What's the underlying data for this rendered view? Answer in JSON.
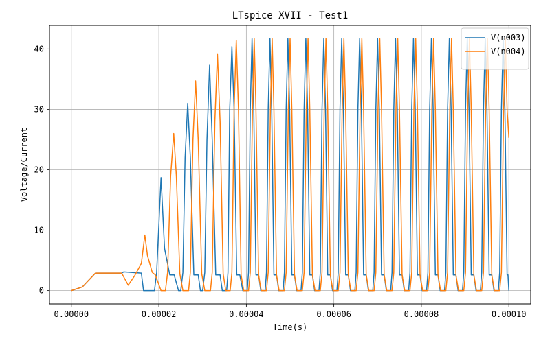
{
  "chart_data": {
    "type": "line",
    "title": "LTspice XVII - Test1",
    "xlabel": "Time(s)",
    "ylabel": "Voltage/Current",
    "xlim": [
      -5e-06,
      0.000105
    ],
    "ylim": [
      -2.2,
      43.9
    ],
    "xticks": [
      0,
      2e-05,
      4e-05,
      6e-05,
      8e-05,
      0.0001
    ],
    "xtick_labels": [
      "0.00000",
      "0.00002",
      "0.00004",
      "0.00006",
      "0.00008",
      "0.00010"
    ],
    "yticks": [
      0,
      10,
      20,
      30,
      40
    ],
    "ytick_labels": [
      "0",
      "10",
      "20",
      "30",
      "40"
    ],
    "grid": true,
    "legend_position": "top-right",
    "series": [
      {
        "name": "V(n003)",
        "color": "#1f77b4",
        "points": [
          [
            0,
            0
          ],
          [
            2.5e-06,
            0.6
          ],
          [
            5.5e-06,
            2.9
          ],
          [
            1.15e-05,
            2.9
          ],
          [
            1.2e-05,
            3.1
          ],
          [
            1.6e-05,
            2.9
          ],
          [
            1.65e-05,
            0
          ],
          [
            1.9e-05,
            0
          ],
          [
            1.95e-05,
            3.0
          ],
          [
            2.05e-05,
            18.7
          ],
          [
            2.13e-05,
            7.0
          ],
          [
            2.25e-05,
            2.6
          ],
          [
            2.35e-05,
            2.6
          ],
          [
            2.45e-05,
            0
          ],
          [
            2.5e-05,
            0
          ],
          [
            2.55e-05,
            3.0
          ],
          [
            2.6e-05,
            22.0
          ],
          [
            2.66e-05,
            31.0
          ],
          [
            2.72e-05,
            22.0
          ],
          [
            2.8e-05,
            2.6
          ],
          [
            2.9e-05,
            2.6
          ],
          [
            2.95e-05,
            0
          ],
          [
            3e-05,
            0
          ],
          [
            3.05e-05,
            3.0
          ],
          [
            3.1e-05,
            25.0
          ],
          [
            3.16e-05,
            37.3
          ],
          [
            3.22e-05,
            25.0
          ],
          [
            3.3e-05,
            2.6
          ],
          [
            3.4e-05,
            2.6
          ],
          [
            3.45e-05,
            0
          ],
          [
            3.55e-05,
            0
          ],
          [
            3.58e-05,
            3.0
          ],
          [
            3.62e-05,
            30.0
          ],
          [
            3.67e-05,
            40.4
          ],
          [
            3.72e-05,
            30.0
          ],
          [
            3.78e-05,
            2.6
          ],
          [
            3.85e-05,
            2.6
          ],
          [
            3.92e-05,
            0
          ],
          [
            4.02e-05,
            0
          ],
          [
            4.05e-05,
            3.0
          ],
          [
            4.09e-05,
            30.0
          ],
          [
            4.13e-05,
            41.7
          ],
          [
            4.17e-05,
            30.0
          ],
          [
            4.22e-05,
            2.6
          ],
          [
            4.28e-05,
            2.6
          ],
          [
            4.33e-05,
            0
          ],
          [
            4.43e-05,
            0
          ],
          [
            4.46e-05,
            3.0
          ],
          [
            4.5e-05,
            30.0
          ],
          [
            4.54e-05,
            41.7
          ],
          [
            4.58e-05,
            30.0
          ],
          [
            4.63e-05,
            2.6
          ],
          [
            4.69e-05,
            2.6
          ],
          [
            4.74e-05,
            0
          ],
          [
            4.84e-05,
            0
          ],
          [
            4.87e-05,
            3.0
          ],
          [
            4.91e-05,
            30.0
          ],
          [
            4.95e-05,
            41.7
          ],
          [
            4.99e-05,
            30.0
          ],
          [
            5.04e-05,
            2.6
          ],
          [
            5.1e-05,
            2.6
          ],
          [
            5.15e-05,
            0
          ],
          [
            5.25e-05,
            0
          ],
          [
            5.28e-05,
            3.0
          ],
          [
            5.32e-05,
            30.0
          ],
          [
            5.36e-05,
            41.7
          ],
          [
            5.4e-05,
            30.0
          ],
          [
            5.45e-05,
            2.6
          ],
          [
            5.51e-05,
            2.6
          ],
          [
            5.56e-05,
            0
          ],
          [
            5.66e-05,
            0
          ],
          [
            5.69e-05,
            3.0
          ],
          [
            5.73e-05,
            30.0
          ],
          [
            5.77e-05,
            41.7
          ],
          [
            5.81e-05,
            30.0
          ],
          [
            5.86e-05,
            2.6
          ],
          [
            5.92e-05,
            2.6
          ],
          [
            5.97e-05,
            0
          ],
          [
            6.07e-05,
            0
          ],
          [
            6.1e-05,
            3.0
          ],
          [
            6.14e-05,
            30.0
          ],
          [
            6.18e-05,
            41.7
          ],
          [
            6.22e-05,
            30.0
          ],
          [
            6.27e-05,
            2.6
          ],
          [
            6.33e-05,
            2.6
          ],
          [
            6.38e-05,
            0
          ],
          [
            6.48e-05,
            0
          ],
          [
            6.51e-05,
            3.0
          ],
          [
            6.55e-05,
            30.0
          ],
          [
            6.59e-05,
            41.7
          ],
          [
            6.63e-05,
            30.0
          ],
          [
            6.68e-05,
            2.6
          ],
          [
            6.74e-05,
            2.6
          ],
          [
            6.79e-05,
            0
          ],
          [
            6.89e-05,
            0
          ],
          [
            6.92e-05,
            3.0
          ],
          [
            6.96e-05,
            30.0
          ],
          [
            7e-05,
            41.7
          ],
          [
            7.04e-05,
            30.0
          ],
          [
            7.09e-05,
            2.6
          ],
          [
            7.15e-05,
            2.6
          ],
          [
            7.2e-05,
            0
          ],
          [
            7.3e-05,
            0
          ],
          [
            7.33e-05,
            3.0
          ],
          [
            7.37e-05,
            30.0
          ],
          [
            7.41e-05,
            41.7
          ],
          [
            7.45e-05,
            30.0
          ],
          [
            7.5e-05,
            2.6
          ],
          [
            7.56e-05,
            2.6
          ],
          [
            7.61e-05,
            0
          ],
          [
            7.71e-05,
            0
          ],
          [
            7.74e-05,
            3.0
          ],
          [
            7.78e-05,
            30.0
          ],
          [
            7.82e-05,
            41.7
          ],
          [
            7.86e-05,
            30.0
          ],
          [
            7.91e-05,
            2.6
          ],
          [
            7.97e-05,
            2.6
          ],
          [
            8.02e-05,
            0
          ],
          [
            8.12e-05,
            0
          ],
          [
            8.15e-05,
            3.0
          ],
          [
            8.19e-05,
            30.0
          ],
          [
            8.23e-05,
            41.7
          ],
          [
            8.27e-05,
            30.0
          ],
          [
            8.32e-05,
            2.6
          ],
          [
            8.38e-05,
            2.6
          ],
          [
            8.43e-05,
            0
          ],
          [
            8.53e-05,
            0
          ],
          [
            8.56e-05,
            3.0
          ],
          [
            8.6e-05,
            30.0
          ],
          [
            8.64e-05,
            41.7
          ],
          [
            8.68e-05,
            30.0
          ],
          [
            8.73e-05,
            2.6
          ],
          [
            8.79e-05,
            2.6
          ],
          [
            8.84e-05,
            0
          ],
          [
            8.94e-05,
            0
          ],
          [
            8.97e-05,
            3.0
          ],
          [
            9.01e-05,
            30.0
          ],
          [
            9.05e-05,
            41.7
          ],
          [
            9.09e-05,
            30.0
          ],
          [
            9.14e-05,
            2.6
          ],
          [
            9.2e-05,
            2.6
          ],
          [
            9.25e-05,
            0
          ],
          [
            9.35e-05,
            0
          ],
          [
            9.38e-05,
            3.0
          ],
          [
            9.42e-05,
            30.0
          ],
          [
            9.46e-05,
            41.7
          ],
          [
            9.5e-05,
            30.0
          ],
          [
            9.55e-05,
            2.6
          ],
          [
            9.61e-05,
            2.6
          ],
          [
            9.66e-05,
            0
          ],
          [
            9.76e-05,
            0
          ],
          [
            9.79e-05,
            3.0
          ],
          [
            9.83e-05,
            30.0
          ],
          [
            9.87e-05,
            41.7
          ],
          [
            9.91e-05,
            30.0
          ],
          [
            9.96e-05,
            2.6
          ],
          [
            9.98e-05,
            2.6
          ],
          [
            0.0001,
            0
          ]
        ]
      },
      {
        "name": "V(n004)",
        "color": "#ff7f0e",
        "points": [
          [
            0,
            0
          ],
          [
            2.5e-06,
            0.6
          ],
          [
            5.5e-06,
            2.9
          ],
          [
            1.15e-05,
            2.9
          ],
          [
            1.3e-05,
            0.9
          ],
          [
            1.45e-05,
            2.5
          ],
          [
            1.6e-05,
            4.5
          ],
          [
            1.68e-05,
            9.2
          ],
          [
            1.74e-05,
            5.8
          ],
          [
            1.85e-05,
            3.0
          ],
          [
            1.92e-05,
            2.6
          ],
          [
            2.05e-05,
            0
          ],
          [
            2.15e-05,
            0
          ],
          [
            2.2e-05,
            3.0
          ],
          [
            2.27e-05,
            19.0
          ],
          [
            2.34e-05,
            26.0
          ],
          [
            2.4e-05,
            19.0
          ],
          [
            2.48e-05,
            2.8
          ],
          [
            2.55e-05,
            0
          ],
          [
            2.68e-05,
            0
          ],
          [
            2.72e-05,
            3.0
          ],
          [
            2.78e-05,
            25.0
          ],
          [
            2.84e-05,
            34.7
          ],
          [
            2.9e-05,
            25.0
          ],
          [
            2.98e-05,
            2.8
          ],
          [
            3.05e-05,
            0
          ],
          [
            3.18e-05,
            0
          ],
          [
            3.22e-05,
            3.0
          ],
          [
            3.28e-05,
            28.0
          ],
          [
            3.34e-05,
            39.2
          ],
          [
            3.4e-05,
            28.0
          ],
          [
            3.47e-05,
            2.8
          ],
          [
            3.53e-05,
            0
          ],
          [
            3.63e-05,
            0
          ],
          [
            3.67e-05,
            3.0
          ],
          [
            3.72e-05,
            30.0
          ],
          [
            3.77e-05,
            41.4
          ],
          [
            3.82e-05,
            30.0
          ],
          [
            3.88e-05,
            2.6
          ],
          [
            3.94e-05,
            0
          ],
          [
            4.05e-05,
            0
          ],
          [
            4.09e-05,
            3.0
          ],
          [
            4.14e-05,
            30.0
          ],
          [
            4.18e-05,
            41.7
          ],
          [
            4.22e-05,
            30.0
          ],
          [
            4.28e-05,
            2.6
          ],
          [
            4.34e-05,
            0
          ],
          [
            4.46e-05,
            0
          ],
          [
            4.5e-05,
            3.0
          ],
          [
            4.55e-05,
            30.0
          ],
          [
            4.59e-05,
            41.7
          ],
          [
            4.63e-05,
            30.0
          ],
          [
            4.69e-05,
            2.6
          ],
          [
            4.75e-05,
            0
          ],
          [
            4.87e-05,
            0
          ],
          [
            4.91e-05,
            3.0
          ],
          [
            4.96e-05,
            30.0
          ],
          [
            5e-05,
            41.7
          ],
          [
            5.04e-05,
            30.0
          ],
          [
            5.1e-05,
            2.6
          ],
          [
            5.16e-05,
            0
          ],
          [
            5.28e-05,
            0
          ],
          [
            5.32e-05,
            3.0
          ],
          [
            5.37e-05,
            30.0
          ],
          [
            5.41e-05,
            41.7
          ],
          [
            5.45e-05,
            30.0
          ],
          [
            5.51e-05,
            2.6
          ],
          [
            5.57e-05,
            0
          ],
          [
            5.69e-05,
            0
          ],
          [
            5.73e-05,
            3.0
          ],
          [
            5.78e-05,
            30.0
          ],
          [
            5.82e-05,
            41.7
          ],
          [
            5.86e-05,
            30.0
          ],
          [
            5.92e-05,
            2.6
          ],
          [
            5.98e-05,
            0
          ],
          [
            6.1e-05,
            0
          ],
          [
            6.14e-05,
            3.0
          ],
          [
            6.19e-05,
            30.0
          ],
          [
            6.23e-05,
            41.7
          ],
          [
            6.27e-05,
            30.0
          ],
          [
            6.33e-05,
            2.6
          ],
          [
            6.39e-05,
            0
          ],
          [
            6.51e-05,
            0
          ],
          [
            6.55e-05,
            3.0
          ],
          [
            6.6e-05,
            30.0
          ],
          [
            6.64e-05,
            41.7
          ],
          [
            6.68e-05,
            30.0
          ],
          [
            6.74e-05,
            2.6
          ],
          [
            6.8e-05,
            0
          ],
          [
            6.92e-05,
            0
          ],
          [
            6.96e-05,
            3.0
          ],
          [
            7.01e-05,
            30.0
          ],
          [
            7.05e-05,
            41.7
          ],
          [
            7.09e-05,
            30.0
          ],
          [
            7.15e-05,
            2.6
          ],
          [
            7.21e-05,
            0
          ],
          [
            7.33e-05,
            0
          ],
          [
            7.37e-05,
            3.0
          ],
          [
            7.42e-05,
            30.0
          ],
          [
            7.46e-05,
            41.7
          ],
          [
            7.5e-05,
            30.0
          ],
          [
            7.56e-05,
            2.6
          ],
          [
            7.62e-05,
            0
          ],
          [
            7.74e-05,
            0
          ],
          [
            7.78e-05,
            3.0
          ],
          [
            7.83e-05,
            30.0
          ],
          [
            7.87e-05,
            41.7
          ],
          [
            7.91e-05,
            30.0
          ],
          [
            7.97e-05,
            2.6
          ],
          [
            8.03e-05,
            0
          ],
          [
            8.15e-05,
            0
          ],
          [
            8.19e-05,
            3.0
          ],
          [
            8.24e-05,
            30.0
          ],
          [
            8.28e-05,
            41.7
          ],
          [
            8.32e-05,
            30.0
          ],
          [
            8.38e-05,
            2.6
          ],
          [
            8.44e-05,
            0
          ],
          [
            8.56e-05,
            0
          ],
          [
            8.6e-05,
            3.0
          ],
          [
            8.65e-05,
            30.0
          ],
          [
            8.69e-05,
            41.7
          ],
          [
            8.73e-05,
            30.0
          ],
          [
            8.79e-05,
            2.6
          ],
          [
            8.85e-05,
            0
          ],
          [
            8.97e-05,
            0
          ],
          [
            9.01e-05,
            3.0
          ],
          [
            9.06e-05,
            30.0
          ],
          [
            9.1e-05,
            41.7
          ],
          [
            9.14e-05,
            30.0
          ],
          [
            9.2e-05,
            2.6
          ],
          [
            9.26e-05,
            0
          ],
          [
            9.38e-05,
            0
          ],
          [
            9.42e-05,
            3.0
          ],
          [
            9.47e-05,
            30.0
          ],
          [
            9.51e-05,
            41.7
          ],
          [
            9.55e-05,
            30.0
          ],
          [
            9.61e-05,
            2.6
          ],
          [
            9.67e-05,
            0
          ],
          [
            9.79e-05,
            0
          ],
          [
            9.83e-05,
            3.0
          ],
          [
            9.88e-05,
            30.0
          ],
          [
            9.92e-05,
            41.7
          ],
          [
            9.96e-05,
            30.0
          ],
          [
            0.0001,
            25.3
          ]
        ]
      }
    ]
  }
}
